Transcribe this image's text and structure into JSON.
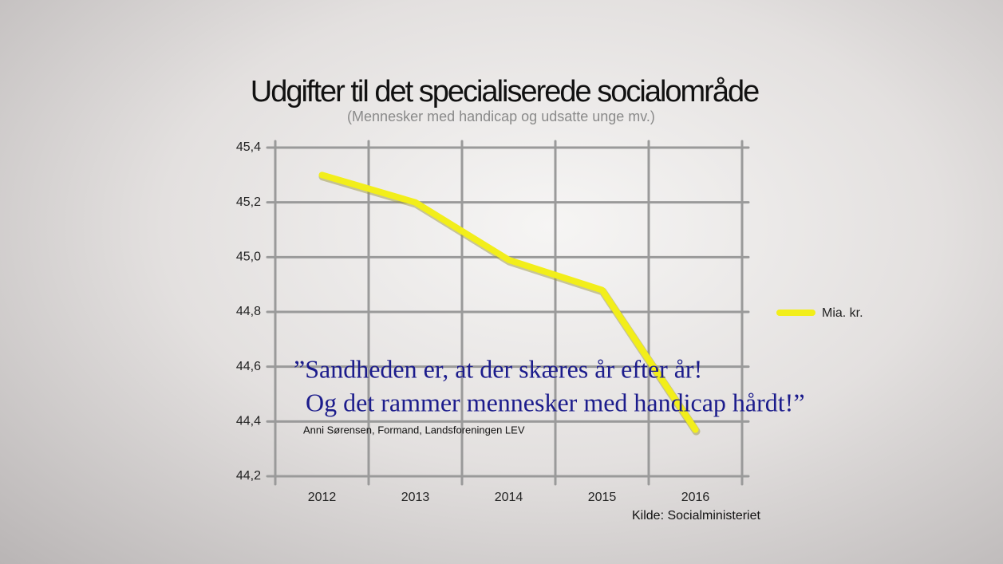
{
  "chart_data": {
    "type": "line",
    "title": "Udgifter til det specialiserede socialområde",
    "subtitle": "(Mennesker med handicap og udsatte unge mv.)",
    "categories": [
      "2012",
      "2013",
      "2014",
      "2015",
      "2016"
    ],
    "series": [
      {
        "name": "Mia. kr.",
        "color": "#f2ee1a",
        "values": [
          45.3,
          45.2,
          44.99,
          44.88,
          44.37
        ]
      }
    ],
    "ylim": [
      44.2,
      45.4
    ],
    "yticks": [
      {
        "value": 44.2,
        "label": "44,2"
      },
      {
        "value": 44.4,
        "label": "44,4"
      },
      {
        "value": 44.6,
        "label": "44,6"
      },
      {
        "value": 44.8,
        "label": "44,8"
      },
      {
        "value": 45.0,
        "label": "45,0"
      },
      {
        "value": 45.2,
        "label": "45,2"
      },
      {
        "value": 45.4,
        "label": "45,4"
      }
    ],
    "grid": true,
    "legend": "right",
    "quote": [
      "”Sandheden er, at der skæres år efter år!",
      "Og det rammer mennesker med handicap hårdt!”"
    ],
    "attribution": "Anni Sørensen, Formand, Landsforeningen LEV",
    "source": "Kilde: Socialministeriet"
  }
}
